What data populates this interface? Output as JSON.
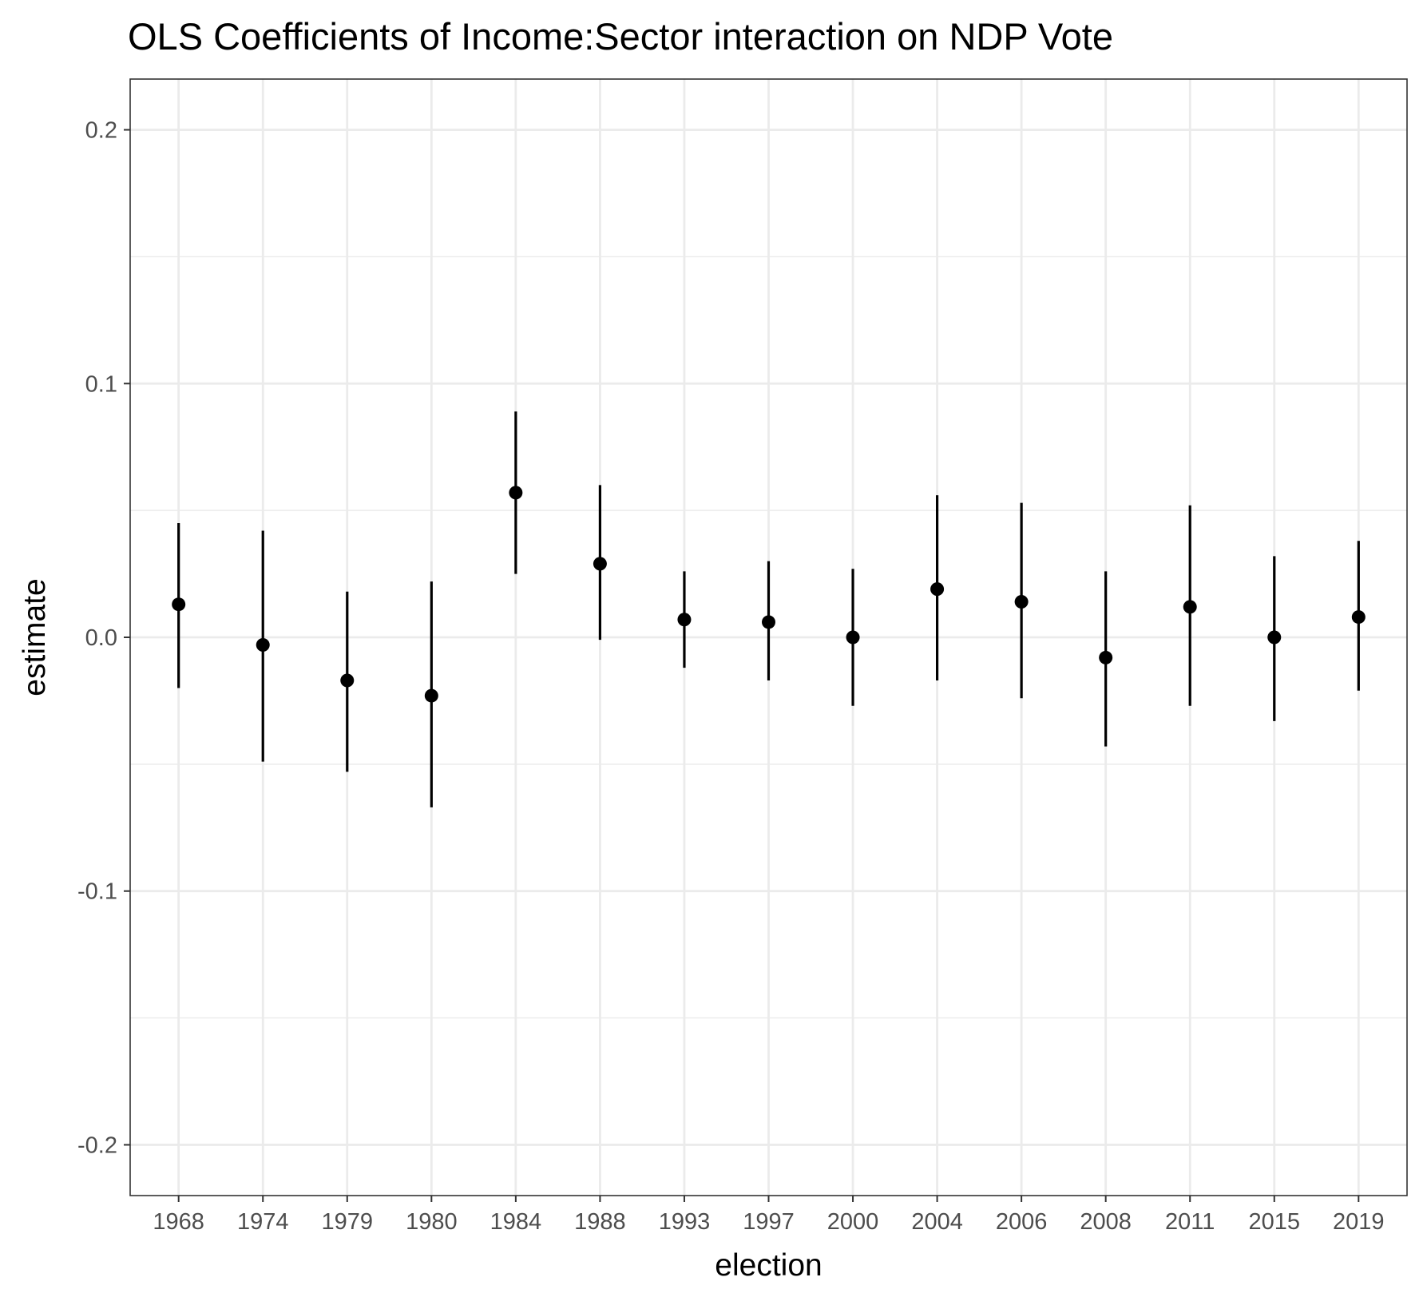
{
  "chart_data": {
    "type": "scatter",
    "title": "OLS Coefficients of Income:Sector interaction on NDP Vote",
    "xlabel": "election",
    "ylabel": "estimate",
    "categories": [
      "1968",
      "1974",
      "1979",
      "1980",
      "1984",
      "1988",
      "1993",
      "1997",
      "2000",
      "2004",
      "2006",
      "2008",
      "2011",
      "2015",
      "2019"
    ],
    "series": [
      {
        "estimate": [
          0.013,
          -0.003,
          -0.017,
          -0.023,
          0.057,
          0.029,
          0.007,
          0.006,
          0.0,
          0.019,
          0.014,
          -0.008,
          0.012,
          0.0,
          0.008
        ],
        "lower": [
          -0.02,
          -0.049,
          -0.053,
          -0.067,
          0.025,
          -0.001,
          -0.012,
          -0.017,
          -0.027,
          -0.017,
          -0.024,
          -0.043,
          -0.027,
          -0.033,
          -0.021
        ],
        "upper": [
          0.045,
          0.042,
          0.018,
          0.022,
          0.089,
          0.06,
          0.026,
          0.03,
          0.027,
          0.056,
          0.053,
          0.026,
          0.052,
          0.032,
          0.038
        ]
      }
    ],
    "ylim": [
      -0.22,
      0.22
    ],
    "yticks": [
      -0.2,
      -0.1,
      0.0,
      0.1,
      0.2
    ],
    "ytick_labels": [
      "-0.2",
      "-0.1",
      "0.0",
      "0.1",
      "0.2"
    ],
    "grid": true,
    "colors": {
      "marks": "#000000",
      "grid": "#ebebeb",
      "panel_border": "#333333",
      "tick_text": "#4d4d4d"
    }
  }
}
